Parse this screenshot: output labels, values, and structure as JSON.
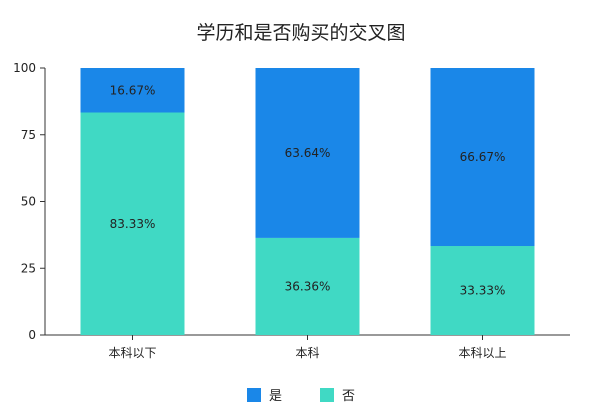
{
  "chart_data": {
    "type": "bar",
    "stacked": true,
    "title": "学历和是否购买的交叉图",
    "categories": [
      "本科以下",
      "本科",
      "本科以上"
    ],
    "series": [
      {
        "name": "否",
        "color": "#40D9C4",
        "values": [
          83.33,
          36.36,
          33.33
        ],
        "labels": [
          "83.33%",
          "36.36%",
          "33.33%"
        ]
      },
      {
        "name": "是",
        "color": "#1A87E8",
        "values": [
          16.67,
          63.64,
          66.67
        ],
        "labels": [
          "16.67%",
          "63.64%",
          "66.67%"
        ]
      }
    ],
    "ylim": [
      0,
      100
    ],
    "yticks": [
      0,
      25,
      50,
      75,
      100
    ],
    "ytick_labels": [
      "0",
      "25",
      "50",
      "75",
      "100"
    ],
    "grid": false,
    "legend_placement": "bottom",
    "legend": [
      {
        "name": "是",
        "color": "#1A87E8"
      },
      {
        "name": "否",
        "color": "#40D9C4"
      }
    ]
  }
}
